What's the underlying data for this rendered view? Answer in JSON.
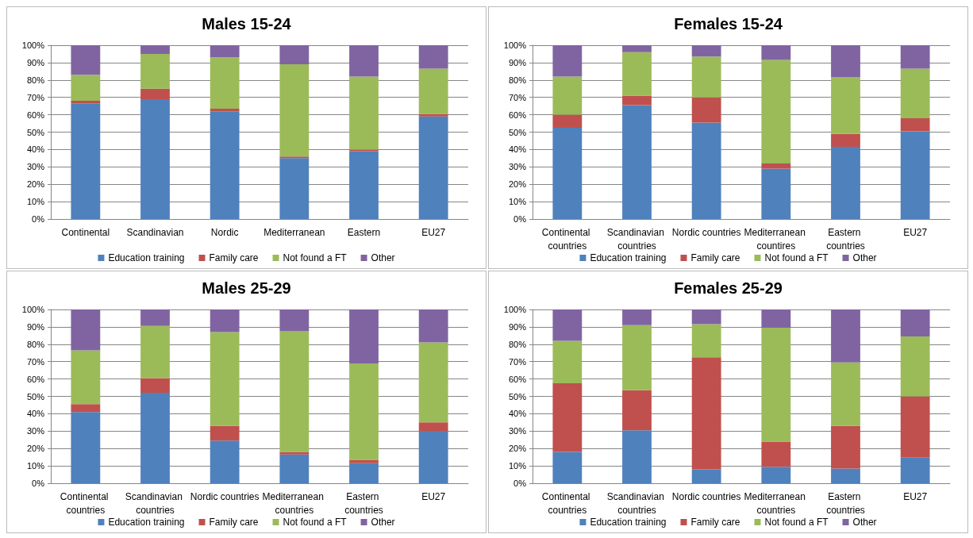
{
  "chart_data": [
    {
      "type": "bar",
      "title": "Males 15-24",
      "stacked": true,
      "categories": [
        "Continental",
        "Scandinavian",
        "Nordic",
        "Mediterranean",
        "Eastern",
        "EU27"
      ],
      "series": [
        {
          "name": "Education training",
          "color": "#4f81bd",
          "values": [
            66.5,
            69,
            62,
            35,
            39,
            59
          ]
        },
        {
          "name": "Family care",
          "color": "#c0504d",
          "values": [
            1.5,
            6,
            1.5,
            1,
            1,
            1.5
          ]
        },
        {
          "name": "Not found a FT",
          "color": "#9bbb59",
          "values": [
            15,
            20,
            29.5,
            53,
            42,
            26
          ]
        },
        {
          "name": "Other",
          "color": "#8064a2",
          "values": [
            17,
            5,
            7,
            11,
            18,
            13.5
          ]
        }
      ],
      "ylim": [
        0,
        100
      ],
      "yticks": [
        {
          "value": 0,
          "label": "0%"
        },
        {
          "value": 10,
          "label": "10%"
        },
        {
          "value": 20,
          "label": "20%"
        },
        {
          "value": 30,
          "label": "30%"
        },
        {
          "value": 40,
          "label": "40%"
        },
        {
          "value": 50,
          "label": "50%"
        },
        {
          "value": 60,
          "label": "60%"
        },
        {
          "value": 70,
          "label": "70%"
        },
        {
          "value": 80,
          "label": "80%"
        },
        {
          "value": 90,
          "label": "90%"
        },
        {
          "value": 100,
          "label": "100%"
        }
      ],
      "grid": "y",
      "legend": "bottom"
    },
    {
      "type": "bar",
      "title": "Females 15-24",
      "stacked": true,
      "categories": [
        "Continental countries",
        "Scandinavian countries",
        "Nordic countries",
        "Mediterranean countires",
        "Eastern countries",
        "EU27"
      ],
      "series": [
        {
          "name": "Education training",
          "color": "#4f81bd",
          "values": [
            52.5,
            65.5,
            55.5,
            29,
            41.5,
            50.5
          ]
        },
        {
          "name": "Family care",
          "color": "#c0504d",
          "values": [
            7.5,
            5.5,
            14.5,
            3,
            7.5,
            7.5
          ]
        },
        {
          "name": "Not found a FT",
          "color": "#9bbb59",
          "values": [
            22,
            25,
            23.5,
            59.5,
            32.5,
            28.5
          ]
        },
        {
          "name": "Other",
          "color": "#8064a2",
          "values": [
            18,
            4,
            6.5,
            8.5,
            18.5,
            13.5
          ]
        }
      ],
      "ylim": [
        0,
        100
      ],
      "yticks": [
        {
          "value": 0,
          "label": "0%"
        },
        {
          "value": 10,
          "label": "10%"
        },
        {
          "value": 20,
          "label": "20%"
        },
        {
          "value": 30,
          "label": "30%"
        },
        {
          "value": 40,
          "label": "40%"
        },
        {
          "value": 50,
          "label": "50%"
        },
        {
          "value": 60,
          "label": "60%"
        },
        {
          "value": 70,
          "label": "70%"
        },
        {
          "value": 80,
          "label": "80%"
        },
        {
          "value": 90,
          "label": "90%"
        },
        {
          "value": 100,
          "label": "100%"
        }
      ],
      "grid": "y",
      "legend": "bottom"
    },
    {
      "type": "bar",
      "title": "Males 25-29",
      "stacked": true,
      "categories": [
        "Continental countries",
        "Scandinavian countries",
        "Nordic countries",
        "Mediterranean countries",
        "Eastern countries",
        "EU27"
      ],
      "series": [
        {
          "name": "Education training",
          "color": "#4f81bd",
          "values": [
            41,
            52,
            24.5,
            16.5,
            11.5,
            30
          ]
        },
        {
          "name": "Family care",
          "color": "#c0504d",
          "values": [
            4.5,
            8.5,
            8.5,
            1.5,
            2,
            5
          ]
        },
        {
          "name": "Not found a FT",
          "color": "#9bbb59",
          "values": [
            31,
            30,
            54,
            69.5,
            55.5,
            46
          ]
        },
        {
          "name": "Other",
          "color": "#8064a2",
          "values": [
            23.5,
            9.5,
            13,
            12.5,
            31,
            19
          ]
        }
      ],
      "ylim": [
        0,
        100
      ],
      "yticks": [
        {
          "value": 0,
          "label": "0%"
        },
        {
          "value": 10,
          "label": "10%"
        },
        {
          "value": 20,
          "label": "20%"
        },
        {
          "value": 30,
          "label": "30%"
        },
        {
          "value": 40,
          "label": "40%"
        },
        {
          "value": 50,
          "label": "50%"
        },
        {
          "value": 60,
          "label": "60%"
        },
        {
          "value": 70,
          "label": "70%"
        },
        {
          "value": 80,
          "label": "80%"
        },
        {
          "value": 90,
          "label": "90%"
        },
        {
          "value": 100,
          "label": "100%"
        }
      ],
      "grid": "y",
      "legend": "bottom"
    },
    {
      "type": "bar",
      "title": "Females 25-29",
      "stacked": true,
      "categories": [
        "Continental countries",
        "Scandinavian countries",
        "Nordic countries",
        "Mediterranean countries",
        "Eastern countries",
        "EU27"
      ],
      "series": [
        {
          "name": "Education training",
          "color": "#4f81bd",
          "values": [
            18,
            30.5,
            8,
            9.5,
            8.5,
            15
          ]
        },
        {
          "name": "Family care",
          "color": "#c0504d",
          "values": [
            39.5,
            23,
            64.5,
            14.5,
            24.5,
            35
          ]
        },
        {
          "name": "Not found a FT",
          "color": "#9bbb59",
          "values": [
            24.5,
            37.5,
            19,
            65.5,
            36.5,
            34.5
          ]
        },
        {
          "name": "Other",
          "color": "#8064a2",
          "values": [
            18,
            9,
            8.5,
            10.5,
            30.5,
            15.5
          ]
        }
      ],
      "ylim": [
        0,
        100
      ],
      "yticks": [
        {
          "value": 0,
          "label": "0%"
        },
        {
          "value": 10,
          "label": "10%"
        },
        {
          "value": 20,
          "label": "20%"
        },
        {
          "value": 30,
          "label": "30%"
        },
        {
          "value": 40,
          "label": "40%"
        },
        {
          "value": 50,
          "label": "50%"
        },
        {
          "value": 60,
          "label": "60%"
        },
        {
          "value": 70,
          "label": "70%"
        },
        {
          "value": 80,
          "label": "80%"
        },
        {
          "value": 90,
          "label": "90%"
        },
        {
          "value": 100,
          "label": "100%"
        }
      ],
      "grid": "y",
      "legend": "bottom"
    }
  ]
}
